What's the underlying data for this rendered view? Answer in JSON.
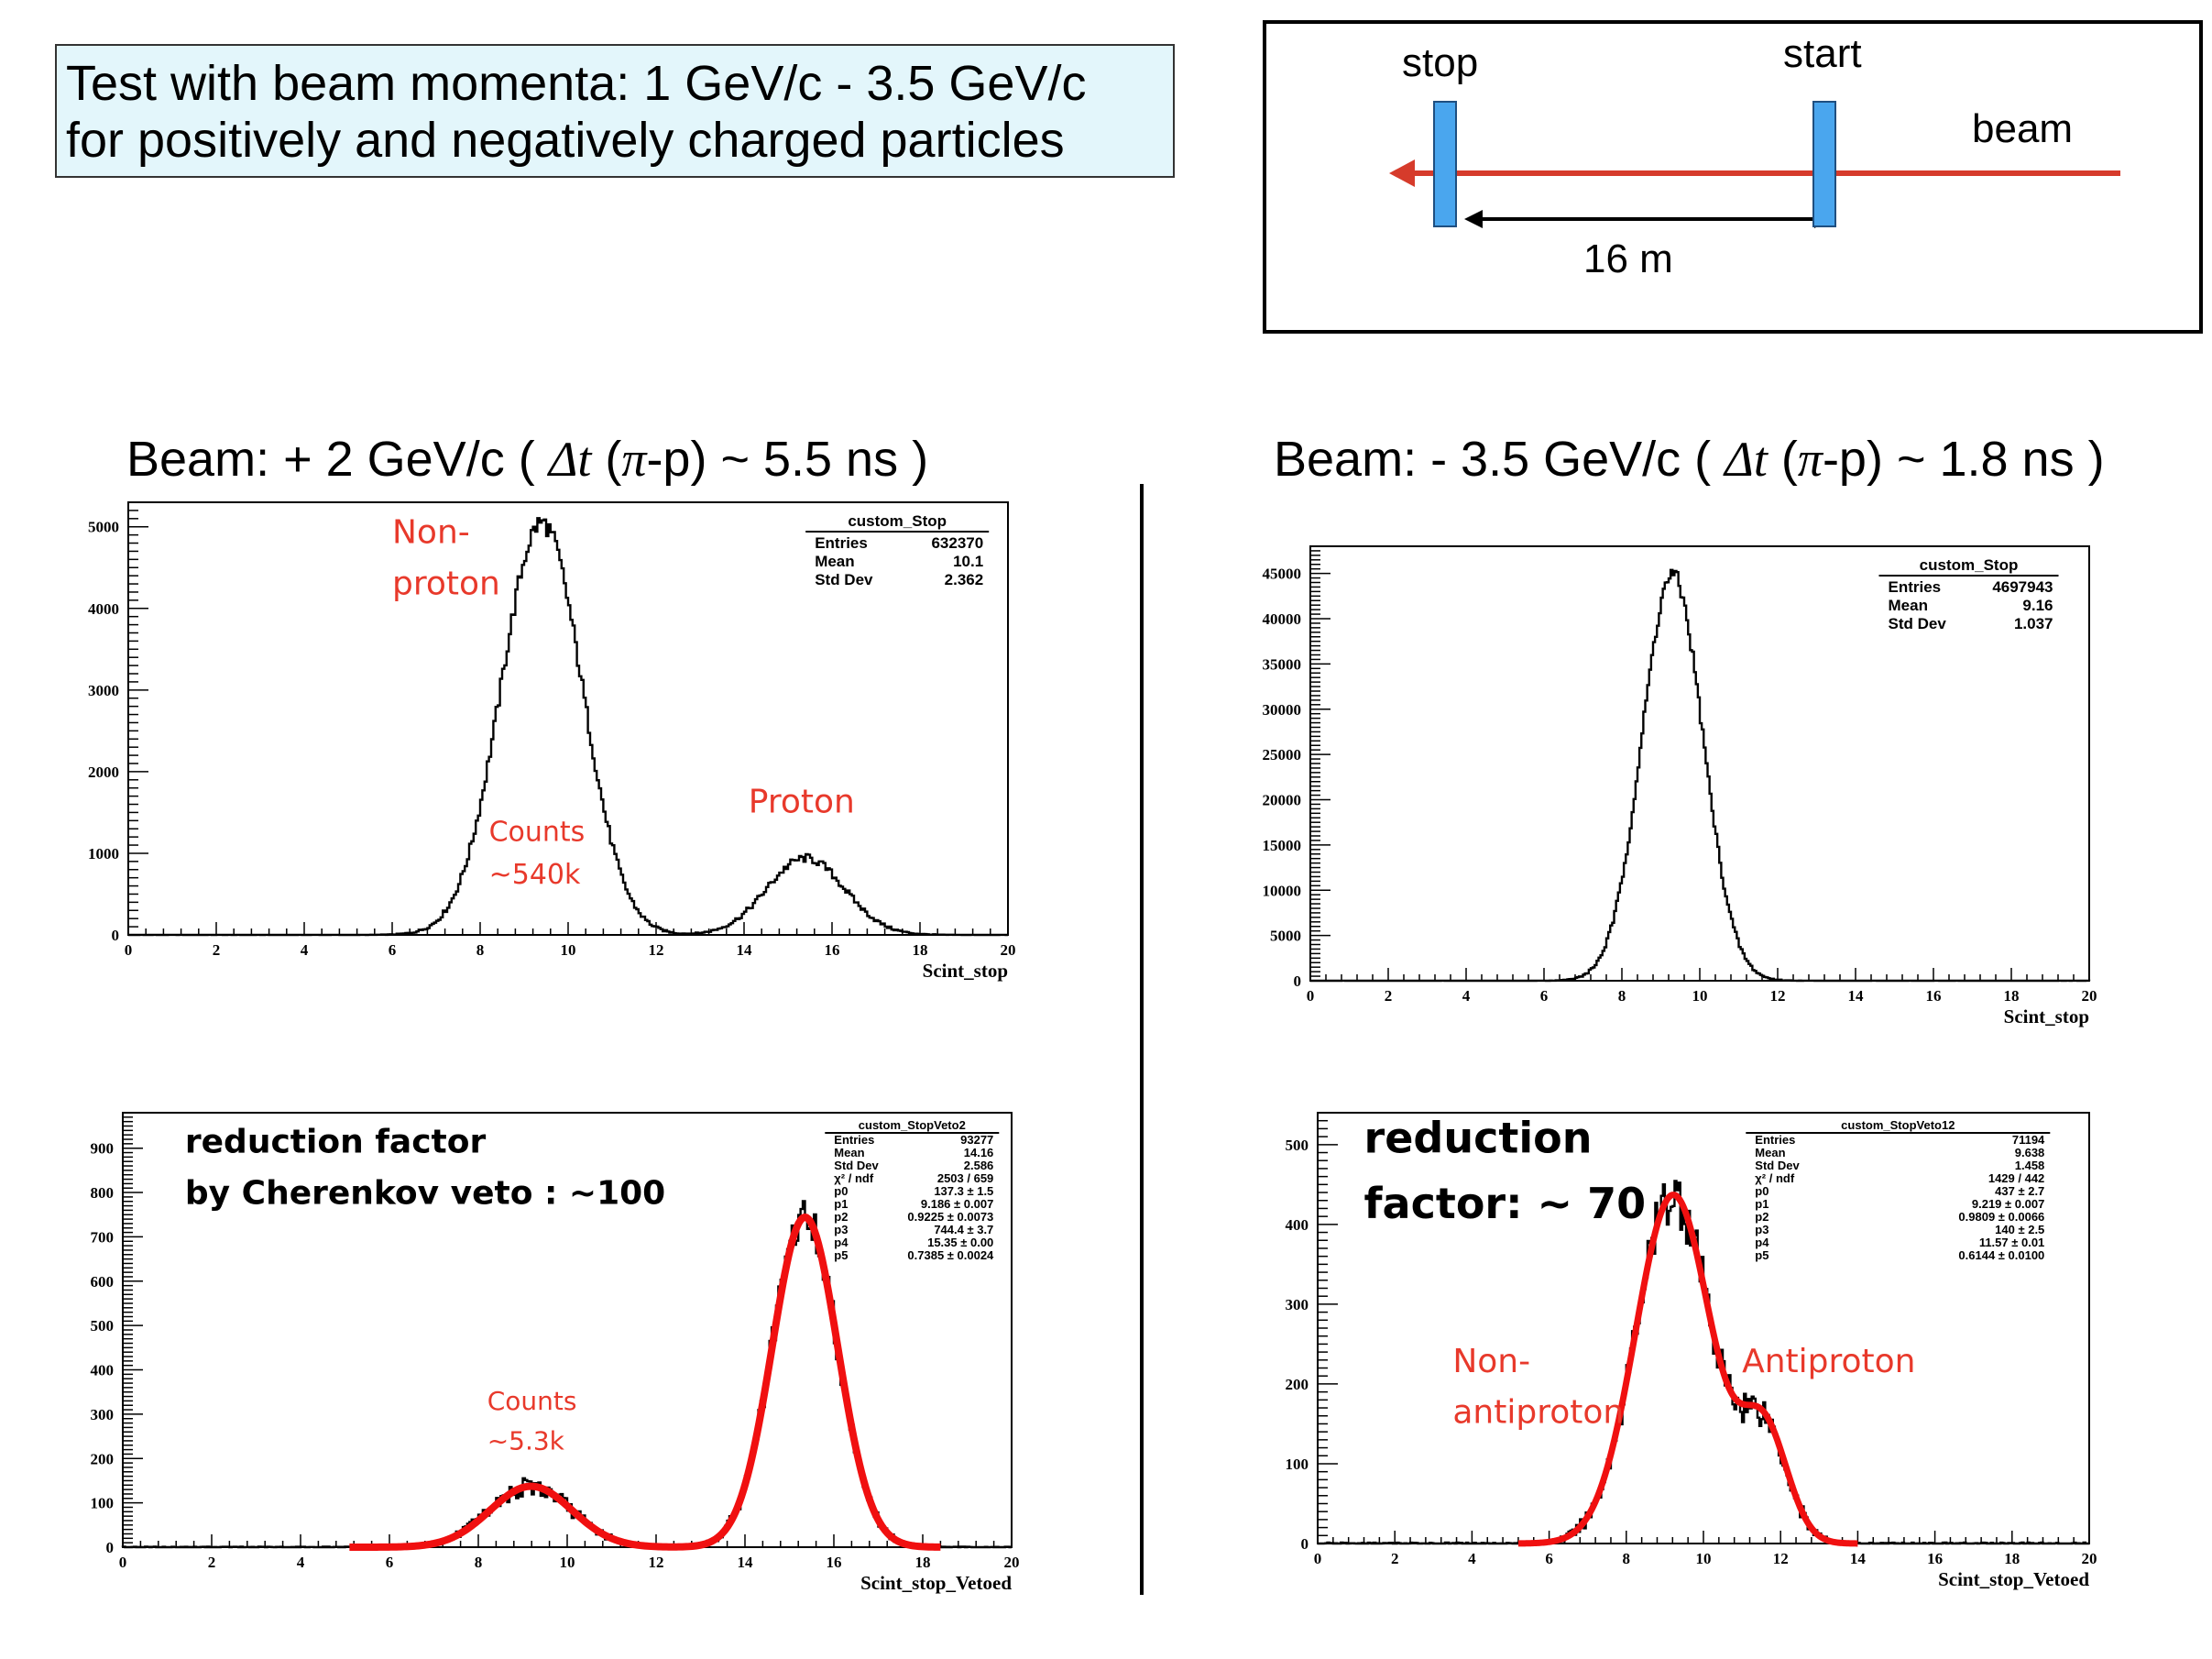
{
  "info": {
    "line1": "Test with beam momenta:  1 GeV/c - 3.5 GeV/c",
    "line2": "for positively and negatively charged particles"
  },
  "setup": {
    "stop": "stop",
    "start": "start",
    "beam": "beam",
    "distance": "16 m",
    "colors": {
      "beam": "#d63b2b",
      "scintillator": "#4aa6ee"
    }
  },
  "beam_titles": {
    "left": {
      "prefix": "Beam: + 2 GeV/c ( ",
      "dt": "Δt",
      "mid": " (",
      "pi": "π",
      "suffix": "-p) ~ 5.5 ns )"
    },
    "right": {
      "prefix": "Beam: - 3.5 GeV/c  ( ",
      "dt": "Δt",
      "mid": " (",
      "pi": "π",
      "suffix": "-p) ~ 1.8 ns )"
    }
  },
  "chart_data": [
    {
      "type": "histogram",
      "xlabel": "Scint_stop",
      "xlim": [
        0,
        20
      ],
      "ylim": [
        0,
        5300
      ],
      "xticks": [
        0,
        2,
        4,
        6,
        8,
        10,
        12,
        14,
        16,
        18,
        20
      ],
      "yticks": [
        0,
        1000,
        2000,
        3000,
        4000,
        5000
      ],
      "stats": {
        "title": "custom_Stop",
        "rows": [
          [
            "Entries",
            "632370"
          ],
          [
            "Mean",
            "10.1"
          ],
          [
            "Std Dev",
            "2.362"
          ]
        ]
      },
      "components": [
        {
          "amp": 5050,
          "mean": 9.4,
          "sigma": 0.92
        },
        {
          "amp": 940,
          "mean": 15.4,
          "sigma": 0.88
        }
      ],
      "annotations": [
        {
          "lines": [
            "Non-",
            "proton"
          ],
          "x": 6.0,
          "y": 4800,
          "color": "#e8392b"
        },
        {
          "lines": [
            "Counts",
            "~540k"
          ],
          "x": 8.2,
          "y": 1150,
          "color": "#e8392b"
        },
        {
          "lines": [
            "Proton"
          ],
          "x": 14.1,
          "y": 1500,
          "color": "#e8392b"
        }
      ]
    },
    {
      "type": "histogram",
      "xlabel": "Scint_stop",
      "xlim": [
        0,
        20
      ],
      "ylim": [
        0,
        48000
      ],
      "xticks": [
        0,
        2,
        4,
        6,
        8,
        10,
        12,
        14,
        16,
        18,
        20
      ],
      "yticks": [
        0,
        5000,
        10000,
        15000,
        20000,
        25000,
        30000,
        35000,
        40000,
        45000
      ],
      "stats": {
        "title": "custom_Stop",
        "rows": [
          [
            "Entries",
            "4697943"
          ],
          [
            "Mean",
            "9.16"
          ],
          [
            "Std Dev",
            "1.037"
          ]
        ]
      },
      "components": [
        {
          "amp": 44800,
          "mean": 9.3,
          "sigma": 0.78
        }
      ],
      "annotations": []
    },
    {
      "type": "histogram",
      "xlabel": "Scint_stop_Vetoed",
      "xlim": [
        0,
        20
      ],
      "ylim": [
        0,
        980
      ],
      "xticks": [
        0,
        2,
        4,
        6,
        8,
        10,
        12,
        14,
        16,
        18,
        20
      ],
      "yticks": [
        0,
        100,
        200,
        300,
        400,
        500,
        600,
        700,
        800,
        900
      ],
      "stats": {
        "title": "custom_StopVeto2",
        "rows": [
          [
            "Entries",
            "93277"
          ],
          [
            "Mean",
            "14.16"
          ],
          [
            "Std Dev",
            "2.586"
          ],
          [
            "χ² / ndf",
            "2503 / 659"
          ],
          [
            "p0",
            "137.3 ± 1.5"
          ],
          [
            "p1",
            "9.186 ± 0.007"
          ],
          [
            "p2",
            "0.9225 ± 0.0073"
          ],
          [
            "p3",
            "744.4 ± 3.7"
          ],
          [
            "p4",
            "15.35 ± 0.00"
          ],
          [
            "p5",
            "0.7385 ± 0.0024"
          ]
        ]
      },
      "fit_range": [
        5.1,
        18.4
      ],
      "components": [
        {
          "amp": 137.3,
          "mean": 9.186,
          "sigma": 0.9225
        },
        {
          "amp": 744.4,
          "mean": 15.35,
          "sigma": 0.7385
        }
      ],
      "annotations": [
        {
          "lines": [
            "reduction factor",
            "by Cherenkov veto : ~100"
          ],
          "x": 1.4,
          "y": 890,
          "color": "#000000"
        },
        {
          "lines": [
            "Counts",
            "~5.3k"
          ],
          "x": 8.2,
          "y": 310,
          "color": "#e8392b"
        }
      ]
    },
    {
      "type": "histogram",
      "xlabel": "Scint_stop_Vetoed",
      "xlim": [
        0,
        20
      ],
      "ylim": [
        0,
        540
      ],
      "xticks": [
        0,
        2,
        4,
        6,
        8,
        10,
        12,
        14,
        16,
        18,
        20
      ],
      "yticks": [
        0,
        100,
        200,
        300,
        400,
        500
      ],
      "stats": {
        "title": "custom_StopVeto12",
        "rows": [
          [
            "Entries",
            "71194"
          ],
          [
            "Mean",
            "9.638"
          ],
          [
            "Std Dev",
            "1.458"
          ],
          [
            "χ² / ndf",
            "1429 / 442"
          ],
          [
            "p0",
            "437 ± 2.7"
          ],
          [
            "p1",
            "9.219 ± 0.007"
          ],
          [
            "p2",
            "0.9809 ± 0.0066"
          ],
          [
            "p3",
            "140 ± 2.5"
          ],
          [
            "p4",
            "11.57 ± 0.01"
          ],
          [
            "p5",
            "0.6144 ± 0.0100"
          ]
        ]
      },
      "fit_range": [
        5.2,
        14.0
      ],
      "components": [
        {
          "amp": 437,
          "mean": 9.219,
          "sigma": 0.9809
        },
        {
          "amp": 140,
          "mean": 11.57,
          "sigma": 0.6144
        }
      ],
      "annotations": [
        {
          "lines": [
            "reduction",
            "factor:  ~ 70"
          ],
          "x": 1.2,
          "y": 490,
          "color": "#000000"
        },
        {
          "lines": [
            "Non-",
            "antiproton"
          ],
          "x": 3.5,
          "y": 215,
          "color": "#e8392b"
        },
        {
          "lines": [
            "Antiproton"
          ],
          "x": 11.0,
          "y": 215,
          "color": "#e8392b"
        }
      ]
    }
  ]
}
